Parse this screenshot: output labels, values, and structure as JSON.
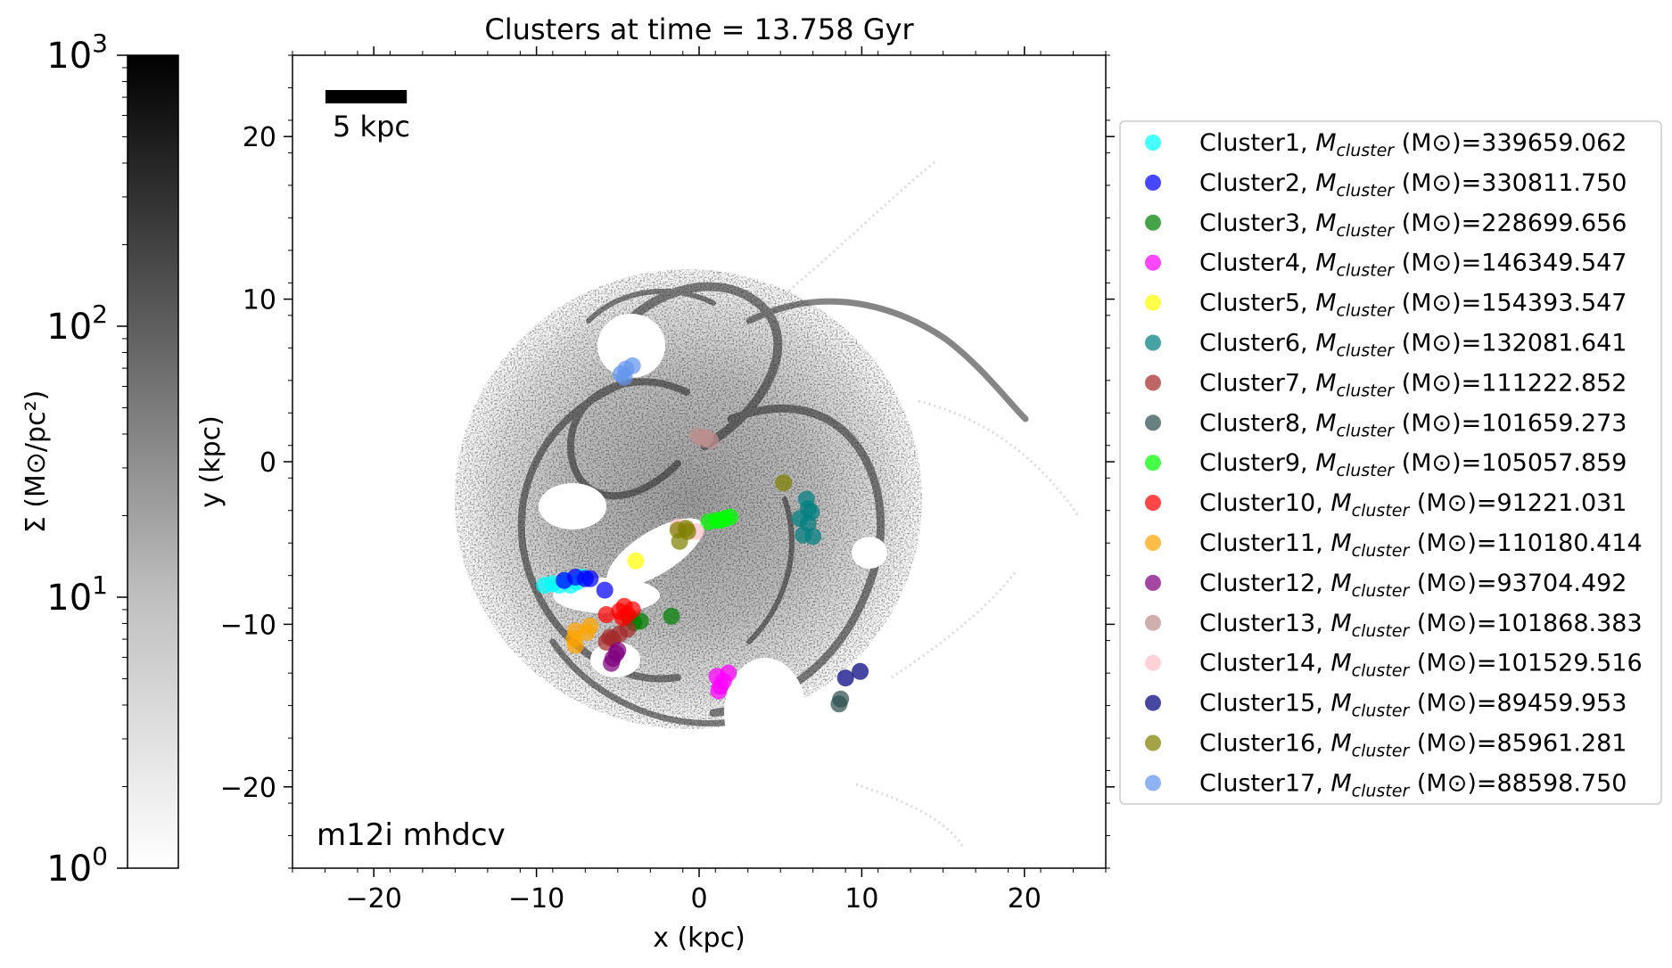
{
  "chart_data": {
    "type": "scatter",
    "title": "Clusters at time = 13.758 Gyr",
    "xlabel": "x (kpc)",
    "ylabel": "y (kpc)",
    "xlim": [
      -25,
      25
    ],
    "ylim": [
      -25,
      25
    ],
    "xticks": [
      -20,
      -10,
      0,
      10,
      20
    ],
    "yticks": [
      -20,
      -10,
      0,
      10,
      20
    ],
    "xtick_labels": [
      "−20",
      "−10",
      "0",
      "10",
      "20"
    ],
    "ytick_labels": [
      "−20",
      "−10",
      "0",
      "10",
      "20"
    ],
    "grid": false,
    "legend_placement": "outside-right",
    "annotations": {
      "scale_bar": "5 kpc",
      "scale_bar_length_kpc": 5,
      "simulation": "m12i mhdcv"
    },
    "colorbar": {
      "label": "Σ (M⊙/pc²)",
      "scale": "log",
      "range": [
        1,
        1000
      ],
      "ticks": [
        {
          "value": 1,
          "base": "10",
          "exp": "0"
        },
        {
          "value": 10,
          "base": "10",
          "exp": "1"
        },
        {
          "value": 100,
          "base": "10",
          "exp": "2"
        },
        {
          "value": 1000,
          "base": "10",
          "exp": "3"
        }
      ],
      "colormap": "greys"
    },
    "legend_mass_label": "M",
    "legend_mass_subscript": "cluster",
    "legend_unit": " (M⊙)=",
    "series": [
      {
        "name": "Cluster1",
        "mass": "339659.062",
        "color": "#00ffff",
        "points": [
          [
            -9.5,
            -7.6
          ],
          [
            -9.0,
            -7.5
          ],
          [
            -8.6,
            -7.6
          ],
          [
            -8.2,
            -7.3
          ],
          [
            -7.9,
            -7.6
          ],
          [
            -7.5,
            -7.4
          ],
          [
            -7.2,
            -7.1
          ]
        ]
      },
      {
        "name": "Cluster2",
        "mass": "330811.750",
        "color": "#0000ff",
        "points": [
          [
            -8.3,
            -7.3
          ],
          [
            -7.6,
            -7.1
          ],
          [
            -7.0,
            -7.2
          ],
          [
            -6.7,
            -7.2
          ],
          [
            -5.8,
            -7.9
          ]
        ]
      },
      {
        "name": "Cluster3",
        "mass": "228699.656",
        "color": "#008000",
        "points": [
          [
            -1.7,
            -9.5
          ],
          [
            -4.0,
            -9.9
          ],
          [
            -3.6,
            -9.8
          ],
          [
            -4.3,
            -9.6
          ]
        ]
      },
      {
        "name": "Cluster4",
        "mass": "146349.547",
        "color": "#ff00ff",
        "points": [
          [
            1.2,
            -14.1
          ],
          [
            1.5,
            -13.5
          ],
          [
            1.1,
            -13.2
          ],
          [
            1.8,
            -13.0
          ],
          [
            1.3,
            -13.8
          ]
        ]
      },
      {
        "name": "Cluster5",
        "mass": "154393.547",
        "color": "#ffff00",
        "points": [
          [
            -3.9,
            -6.1
          ]
        ]
      },
      {
        "name": "Cluster6",
        "mass": "132081.641",
        "color": "#008080",
        "points": [
          [
            6.6,
            -2.3
          ],
          [
            6.7,
            -2.9
          ],
          [
            6.9,
            -3.1
          ],
          [
            6.2,
            -3.5
          ],
          [
            6.4,
            -4.5
          ],
          [
            7.0,
            -4.6
          ],
          [
            6.7,
            -3.8
          ]
        ]
      },
      {
        "name": "Cluster7",
        "mass": "111222.852",
        "color": "#a52a2a",
        "points": [
          [
            -5.7,
            -11.1
          ],
          [
            -5.3,
            -10.9
          ],
          [
            -4.9,
            -10.6
          ],
          [
            -4.4,
            -10.3
          ],
          [
            -5.5,
            -10.8
          ]
        ]
      },
      {
        "name": "Cluster8",
        "mass": "101659.273",
        "color": "#2f4f4f",
        "points": [
          [
            8.6,
            -14.9
          ],
          [
            8.7,
            -14.6
          ]
        ]
      },
      {
        "name": "Cluster9",
        "mass": "105057.859",
        "color": "#00ff00",
        "points": [
          [
            0.6,
            -3.7
          ],
          [
            1.1,
            -3.6
          ],
          [
            1.6,
            -3.5
          ],
          [
            1.9,
            -3.4
          ],
          [
            1.3,
            -3.6
          ]
        ]
      },
      {
        "name": "Cluster10",
        "mass": "91221.031",
        "color": "#ff0000",
        "points": [
          [
            -5.7,
            -9.4
          ],
          [
            -4.9,
            -9.2
          ],
          [
            -4.6,
            -8.9
          ],
          [
            -4.4,
            -9.4
          ],
          [
            -4.1,
            -9.1
          ],
          [
            -4.7,
            -9.6
          ]
        ]
      },
      {
        "name": "Cluster11",
        "mass": "110180.414",
        "color": "#ffa500",
        "points": [
          [
            -7.6,
            -10.4
          ],
          [
            -7.7,
            -10.9
          ],
          [
            -7.6,
            -11.3
          ],
          [
            -6.9,
            -10.5
          ],
          [
            -6.7,
            -10.1
          ]
        ]
      },
      {
        "name": "Cluster12",
        "mass": "93704.492",
        "color": "#800080",
        "points": [
          [
            -5.4,
            -12.4
          ],
          [
            -5.3,
            -12.1
          ],
          [
            -5.1,
            -11.8
          ],
          [
            -5.0,
            -11.6
          ]
        ]
      },
      {
        "name": "Cluster13",
        "mass": "101868.383",
        "color": "#bc8f8f",
        "points": [
          [
            -0.1,
            1.6
          ],
          [
            0.3,
            1.4
          ],
          [
            0.7,
            1.3
          ],
          [
            0.4,
            1.5
          ]
        ]
      },
      {
        "name": "Cluster14",
        "mass": "101529.516",
        "color": "#ffc0cb",
        "points": [
          [
            -1.3,
            -4.0
          ],
          [
            -0.7,
            -4.2
          ],
          [
            -0.2,
            -4.3
          ],
          [
            -1.0,
            -4.1
          ]
        ]
      },
      {
        "name": "Cluster15",
        "mass": "89459.953",
        "color": "#000080",
        "points": [
          [
            9.0,
            -13.3
          ],
          [
            9.9,
            -12.9
          ]
        ]
      },
      {
        "name": "Cluster16",
        "mass": "85961.281",
        "color": "#808000",
        "points": [
          [
            5.2,
            -1.3
          ],
          [
            -1.3,
            -4.2
          ],
          [
            -0.8,
            -4.1
          ],
          [
            -1.2,
            -4.9
          ],
          [
            -0.7,
            -4.3
          ]
        ]
      },
      {
        "name": "Cluster17",
        "mass": "88598.750",
        "color": "#6495ed",
        "points": [
          [
            -4.8,
            5.4
          ],
          [
            -4.5,
            5.7
          ],
          [
            -4.1,
            5.9
          ],
          [
            -4.6,
            5.2
          ]
        ]
      }
    ]
  }
}
